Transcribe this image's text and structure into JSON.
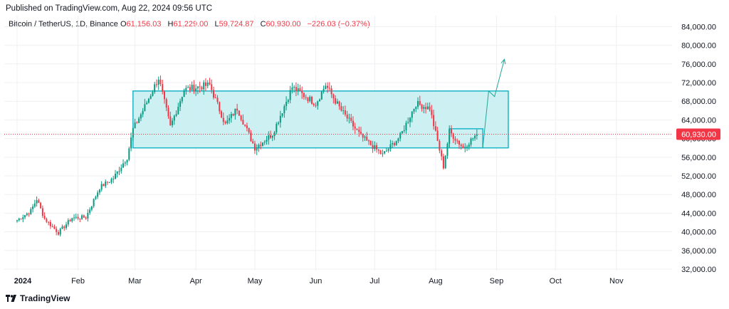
{
  "header": {
    "published": "Published on TradingView.com, Aug 22, 2024 09:56 UTC"
  },
  "legend": {
    "symbol": "Bitcoin / TetherUS, 1D, Binance",
    "o_label": "O",
    "o_value": "61,156.03",
    "h_label": "H",
    "h_value": "61,229.00",
    "l_label": "L",
    "l_value": "59,724.87",
    "c_label": "C",
    "c_value": "60,930.00",
    "change": "−226.03 (−0.37%)"
  },
  "price_axis": {
    "ticks": [
      "84,000.00",
      "80,000.00",
      "76,000.00",
      "72,000.00",
      "68,000.00",
      "64,000.00",
      "60,000.00",
      "56,000.00",
      "52,000.00",
      "48,000.00",
      "44,000.00",
      "40,000.00",
      "36,000.00",
      "32,000.00"
    ],
    "last_price_label": "60,930.00"
  },
  "time_axis": {
    "labels": [
      "2024",
      "Feb",
      "Mar",
      "Apr",
      "May",
      "Jun",
      "Jul",
      "Aug",
      "Sep",
      "Oct",
      "Nov"
    ]
  },
  "footer": {
    "brand": "TradingView"
  },
  "colors": {
    "up": "#089981",
    "down": "#f23645",
    "range_fill": "#c8eef2",
    "range_border": "#1cb6c9",
    "arrow": "#20a89a",
    "last_price": "#f23645",
    "grid": "#eef0f3"
  },
  "chart_data": {
    "type": "candlestick",
    "symbol": "BTCUSDT",
    "interval": "1D",
    "ylim": [
      30000,
      86000
    ],
    "yticks": [
      32000,
      36000,
      40000,
      44000,
      48000,
      52000,
      56000,
      60000,
      64000,
      68000,
      72000,
      76000,
      80000,
      84000
    ],
    "last_close": 60930,
    "close_path": [
      {
        "date": "2024-01-01",
        "close": 42500
      },
      {
        "date": "2024-01-08",
        "close": 44500
      },
      {
        "date": "2024-01-11",
        "close": 47000
      },
      {
        "date": "2024-01-15",
        "close": 42800
      },
      {
        "date": "2024-01-22",
        "close": 39800
      },
      {
        "date": "2024-01-29",
        "close": 43000
      },
      {
        "date": "2024-02-05",
        "close": 43100
      },
      {
        "date": "2024-02-12",
        "close": 49500
      },
      {
        "date": "2024-02-19",
        "close": 51500
      },
      {
        "date": "2024-02-26",
        "close": 56000
      },
      {
        "date": "2024-02-29",
        "close": 62000
      },
      {
        "date": "2024-03-05",
        "close": 66000
      },
      {
        "date": "2024-03-13",
        "close": 73000
      },
      {
        "date": "2024-03-19",
        "close": 62500
      },
      {
        "date": "2024-03-26",
        "close": 70500
      },
      {
        "date": "2024-04-08",
        "close": 71500
      },
      {
        "date": "2024-04-16",
        "close": 63000
      },
      {
        "date": "2024-04-22",
        "close": 66500
      },
      {
        "date": "2024-05-01",
        "close": 58000
      },
      {
        "date": "2024-05-10",
        "close": 61000
      },
      {
        "date": "2024-05-20",
        "close": 71000
      },
      {
        "date": "2024-06-01",
        "close": 67500
      },
      {
        "date": "2024-06-06",
        "close": 71500
      },
      {
        "date": "2024-06-14",
        "close": 66000
      },
      {
        "date": "2024-06-24",
        "close": 60500
      },
      {
        "date": "2024-07-05",
        "close": 56500
      },
      {
        "date": "2024-07-14",
        "close": 60500
      },
      {
        "date": "2024-07-22",
        "close": 67500
      },
      {
        "date": "2024-07-29",
        "close": 66500
      },
      {
        "date": "2024-08-05",
        "close": 54000
      },
      {
        "date": "2024-08-08",
        "close": 61500
      },
      {
        "date": "2024-08-15",
        "close": 58000
      },
      {
        "date": "2024-08-22",
        "close": 60930
      }
    ],
    "annotations": [
      {
        "type": "range_box",
        "from": "2024-02-29",
        "to": "2024-09-07",
        "y_low": 58000,
        "y_high": 70200
      },
      {
        "type": "range_box",
        "from": "2024-08-08",
        "to": "2024-08-25",
        "y_low": 58000,
        "y_high": 62100
      },
      {
        "type": "projection_arrow",
        "points": [
          {
            "date": "2024-08-25",
            "price": 58000
          },
          {
            "date": "2024-08-28",
            "price": 70200
          },
          {
            "date": "2024-08-31",
            "price": 69000
          },
          {
            "date": "2024-09-05",
            "price": 77000
          }
        ]
      }
    ],
    "x_tick_labels": [
      "2024",
      "Feb",
      "Mar",
      "Apr",
      "May",
      "Jun",
      "Jul",
      "Aug",
      "Sep",
      "Oct",
      "Nov"
    ],
    "grid": true
  }
}
